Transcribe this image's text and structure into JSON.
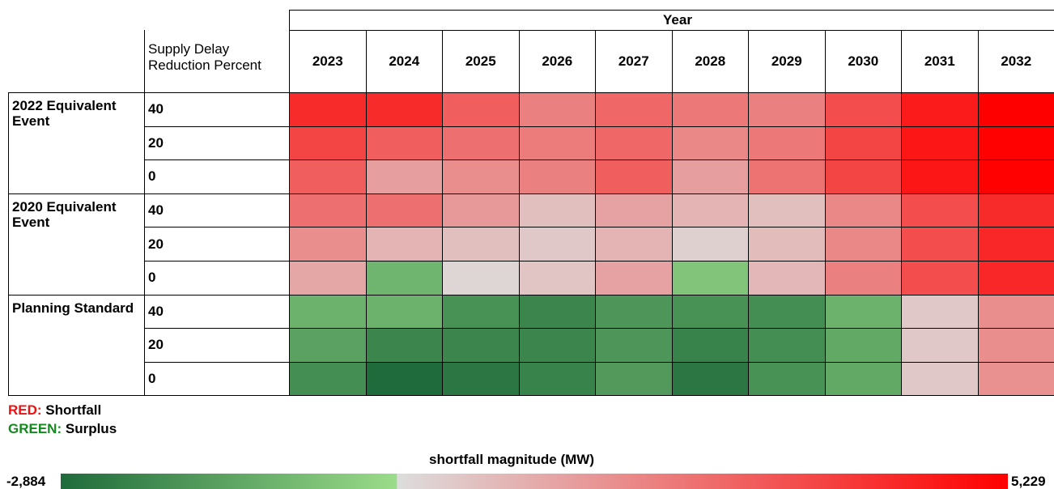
{
  "chart_data": {
    "type": "heatmap",
    "column_header": "Year",
    "row_header": "Supply Delay Reduction Percent",
    "x": [
      "2023",
      "2024",
      "2025",
      "2026",
      "2027",
      "2028",
      "2029",
      "2030",
      "2031",
      "2032"
    ],
    "groups": [
      {
        "name": "2022 Equivalent Event",
        "rows": [
          "40",
          "20",
          "0"
        ]
      },
      {
        "name": "2020 Equivalent Event",
        "rows": [
          "40",
          "20",
          "0"
        ]
      },
      {
        "name": "Planning Standard",
        "rows": [
          "40",
          "20",
          "0"
        ]
      }
    ],
    "values": [
      [
        4200,
        4200,
        3000,
        2200,
        2800,
        2400,
        2200,
        3400,
        4600,
        5229
      ],
      [
        3600,
        3000,
        2600,
        2300,
        2800,
        2000,
        2400,
        3600,
        4700,
        5200
      ],
      [
        3000,
        1500,
        1900,
        2200,
        3000,
        1500,
        2500,
        3600,
        4700,
        5200
      ],
      [
        2600,
        2600,
        1600,
        700,
        1400,
        1000,
        700,
        2000,
        3400,
        4200
      ],
      [
        1900,
        1000,
        700,
        500,
        1000,
        300,
        800,
        2000,
        3400,
        4300
      ],
      [
        1300,
        -1000,
        200,
        600,
        1400,
        -600,
        900,
        2200,
        3400,
        4300
      ],
      [
        -1100,
        -1100,
        -1900,
        -2200,
        -1800,
        -1900,
        -2000,
        -1100,
        500,
        1900
      ],
      [
        -1500,
        -2200,
        -2200,
        -2200,
        -1800,
        -2300,
        -2000,
        -1300,
        500,
        1900
      ],
      [
        -2000,
        -2884,
        -2600,
        -2300,
        -1700,
        -2600,
        -1900,
        -1300,
        500,
        1800
      ]
    ],
    "colors": [
      "#1f6b3b",
      "#9bdc8a",
      "#dddddd",
      "#ff0000"
    ],
    "zlim": [
      -2884,
      5229
    ],
    "zticks": [
      {
        "value": -2884,
        "label": "-2,884"
      },
      {
        "value": 5229,
        "label": "5,229"
      }
    ],
    "colorbar_title": "shortfall magnitude (MW)",
    "legend": [
      {
        "label": "RED:",
        "text": "Shortfall",
        "color": "#ee1111"
      },
      {
        "label": "GREEN:",
        "text": "Surplus",
        "color": "#138a1d"
      }
    ]
  }
}
